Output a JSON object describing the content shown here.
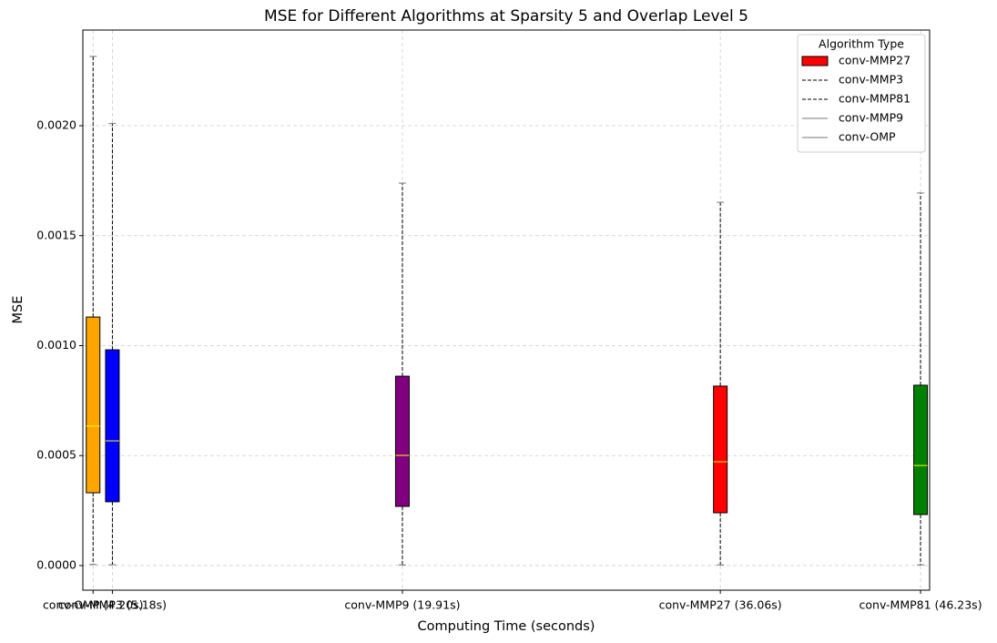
{
  "chart_data": {
    "type": "box",
    "title": "MSE for Different Algorithms at Sparsity 5 and Overlap Level 5",
    "x_label": "Computing Time (seconds)",
    "y_label": "MSE",
    "xlim": [
      3.68,
      46.69
    ],
    "xticks": [
      {
        "value": 4.2,
        "label": "conv-OMP (4.20s)"
      },
      {
        "value": 5.18,
        "label": "conv-MMP3 (5.18s)"
      },
      {
        "value": 19.91,
        "label": "conv-MMP9 (19.91s)"
      },
      {
        "value": 36.06,
        "label": "conv-MMP27 (36.06s)"
      },
      {
        "value": 46.23,
        "label": "conv-MMP81 (46.23s)"
      }
    ],
    "ylim": [
      -0.000112,
      0.002435
    ],
    "yticks": [
      {
        "value": 0,
        "label": "0.0000"
      },
      {
        "value": 0.0005,
        "label": "0.0005"
      },
      {
        "value": 0.001,
        "label": "0.0010"
      },
      {
        "value": 0.0015,
        "label": "0.0015"
      },
      {
        "value": 0.002,
        "label": "0.0020"
      }
    ],
    "grid": true,
    "legend_title": "Algorithm Type",
    "legend_position": "upper-right",
    "series": [
      {
        "name": "conv-MMP27",
        "color": "#ff0000",
        "legend_marker": "patch",
        "x": 36.06,
        "whisker_low": 3e-06,
        "q1": 0.00024,
        "median": 0.000472,
        "q3": 0.000816,
        "whisker_high": 0.001652
      },
      {
        "name": "conv-MMP3",
        "color": "#0000ff",
        "legend_marker": "dashed",
        "x": 5.18,
        "whisker_low": 4e-06,
        "q1": 0.00029,
        "median": 0.000567,
        "q3": 0.000981,
        "whisker_high": 0.00201
      },
      {
        "name": "conv-MMP81",
        "color": "#008000",
        "legend_marker": "dashed",
        "x": 46.23,
        "whisker_low": 3e-06,
        "q1": 0.000232,
        "median": 0.000455,
        "q3": 0.00082,
        "whisker_high": 0.001694
      },
      {
        "name": "conv-MMP9",
        "color": "#800080",
        "legend_marker": "line",
        "x": 19.91,
        "whisker_low": 3e-06,
        "q1": 0.000269,
        "median": 0.000501,
        "q3": 0.000861,
        "whisker_high": 0.001739
      },
      {
        "name": "conv-OMP",
        "color": "#ffa500",
        "legend_marker": "line",
        "x": 4.2,
        "whisker_low": 5e-06,
        "q1": 0.000331,
        "median": 0.000634,
        "q3": 0.00113,
        "whisker_high": 0.002315
      }
    ]
  }
}
